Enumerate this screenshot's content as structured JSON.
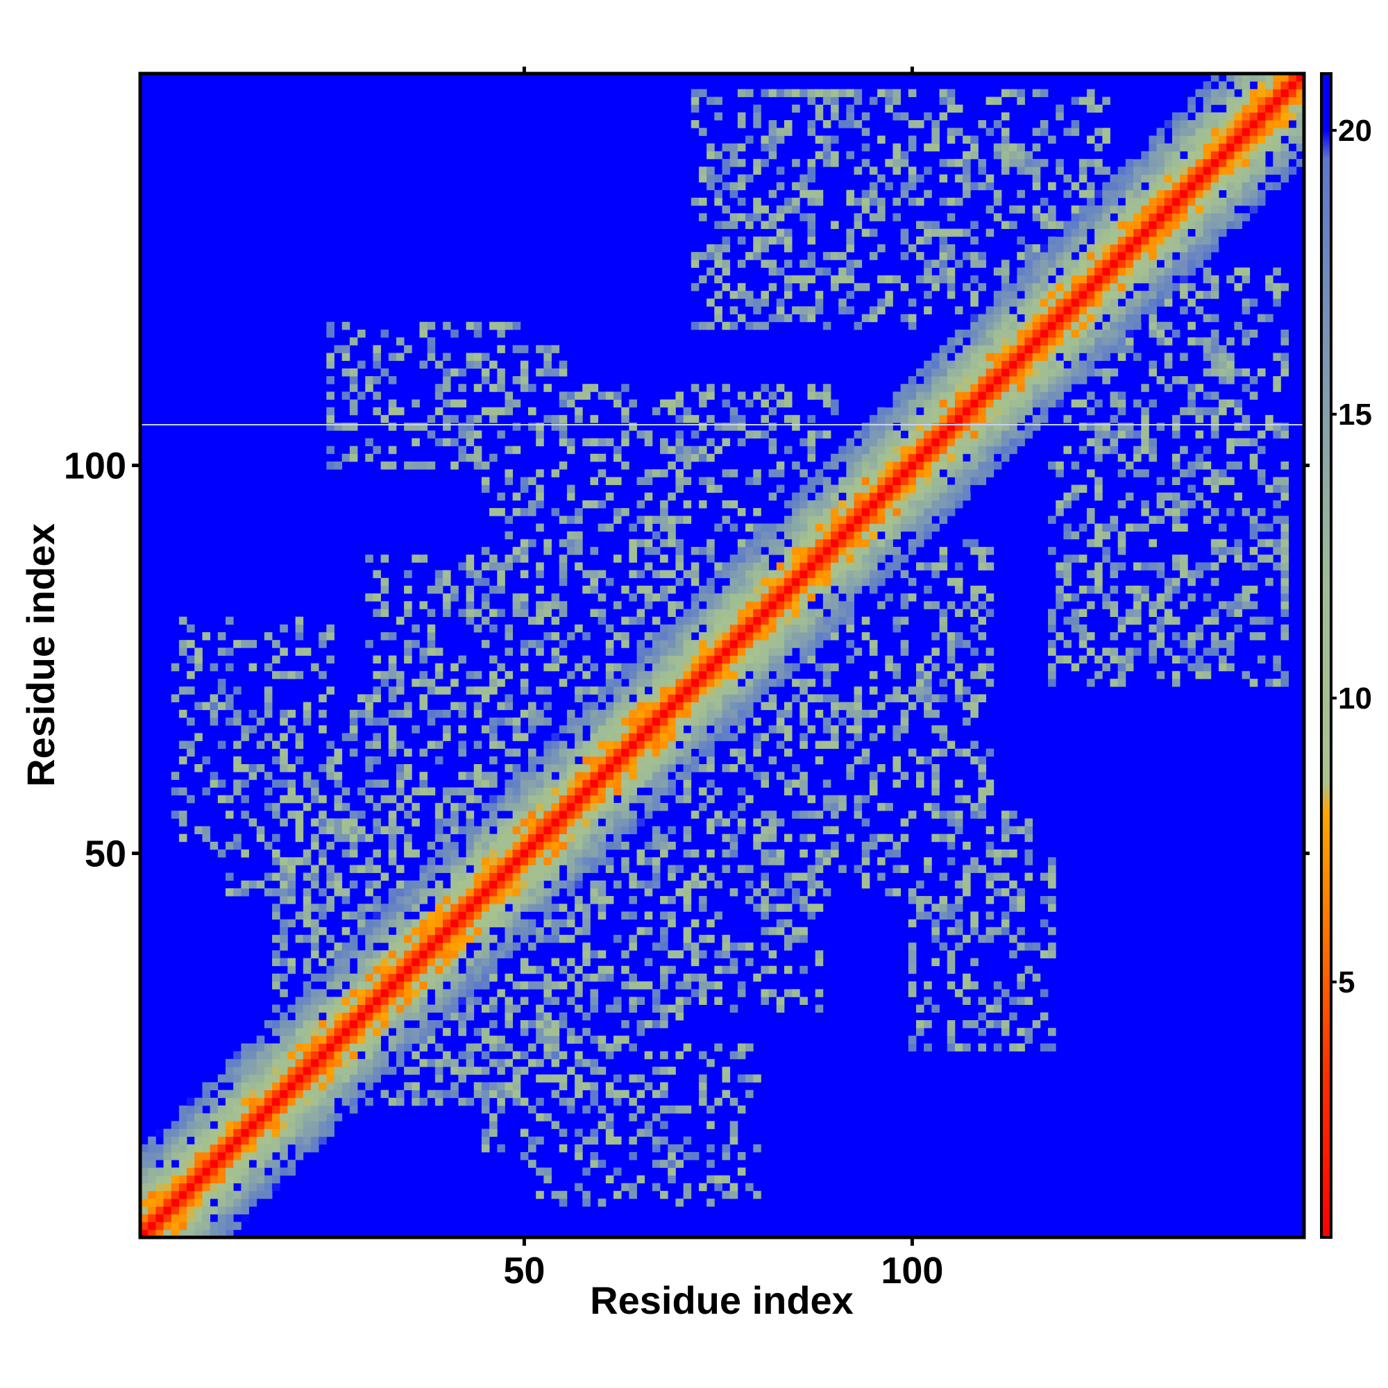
{
  "chart_data": {
    "type": "heatmap",
    "title": "",
    "xlabel": "Residue index",
    "ylabel": "Residue index",
    "n_residues": 150,
    "xlim": [
      1,
      150
    ],
    "ylim": [
      1,
      150
    ],
    "x_ticks": [
      50,
      100
    ],
    "y_ticks": [
      50,
      100
    ],
    "colorbar": {
      "ticks": [
        5,
        10,
        15,
        20
      ],
      "range": [
        0.5,
        21
      ],
      "stops": [
        {
          "value": 0.5,
          "color": "#ff0000"
        },
        {
          "value": 3.5,
          "color": "#ff3300"
        },
        {
          "value": 5.5,
          "color": "#ff6a00"
        },
        {
          "value": 8.0,
          "color": "#ffa500"
        },
        {
          "value": 8.5,
          "color": "#a9c38c"
        },
        {
          "value": 12.0,
          "color": "#9fbc96"
        },
        {
          "value": 16.0,
          "color": "#7c98b4"
        },
        {
          "value": 19.5,
          "color": "#5a78cc"
        },
        {
          "value": 20.0,
          "color": "#0000ff"
        },
        {
          "value": 21.0,
          "color": "#0000ff"
        }
      ]
    },
    "background_color": "#0000ff",
    "cutoff": 20,
    "diagonal_halfwidth": 11,
    "contact_blocks": [
      {
        "x": [
          18,
          55
        ],
        "y": [
          18,
          55
        ],
        "density": 0.45
      },
      {
        "x": [
          30,
          88
        ],
        "y": [
          30,
          88
        ],
        "density": 0.35
      },
      {
        "x": [
          45,
          90
        ],
        "y": [
          68,
          110
        ],
        "density": 0.3
      },
      {
        "x": [
          68,
          110
        ],
        "y": [
          45,
          90
        ],
        "density": 0.3
      },
      {
        "x": [
          72,
          100
        ],
        "y": [
          118,
          148
        ],
        "density": 0.35
      },
      {
        "x": [
          118,
          148
        ],
        "y": [
          72,
          100
        ],
        "density": 0.35
      },
      {
        "x": [
          100,
          125
        ],
        "y": [
          120,
          148
        ],
        "density": 0.35
      },
      {
        "x": [
          120,
          148
        ],
        "y": [
          100,
          125
        ],
        "density": 0.35
      },
      {
        "x": [
          100,
          118
        ],
        "y": [
          25,
          55
        ],
        "density": 0.3
      },
      {
        "x": [
          25,
          55
        ],
        "y": [
          100,
          118
        ],
        "density": 0.3
      },
      {
        "x": [
          130,
          148
        ],
        "y": [
          75,
          90
        ],
        "density": 0.4
      },
      {
        "x": [
          75,
          90
        ],
        "y": [
          130,
          148
        ],
        "density": 0.4
      },
      {
        "x": [
          12,
          40
        ],
        "y": [
          45,
          70
        ],
        "density": 0.3
      },
      {
        "x": [
          45,
          70
        ],
        "y": [
          12,
          40
        ],
        "density": 0.3
      },
      {
        "x": [
          50,
          80
        ],
        "y": [
          5,
          25
        ],
        "density": 0.2
      },
      {
        "x": [
          5,
          25
        ],
        "y": [
          50,
          80
        ],
        "density": 0.2
      }
    ]
  }
}
